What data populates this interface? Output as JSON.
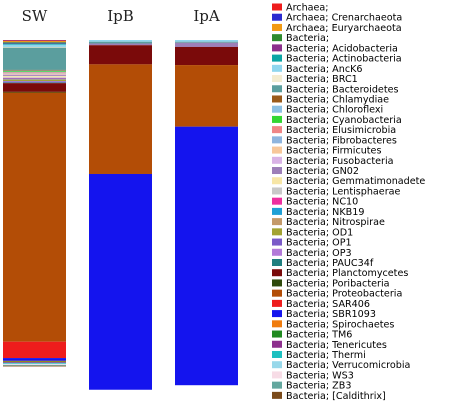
{
  "chart_data": {
    "type": "bar",
    "stacked": true,
    "normalized_to": 100,
    "categories": [
      "SW",
      "IpB",
      "IpA"
    ],
    "series": [
      {
        "name": "Archaea;",
        "color": "#ee1c1c",
        "values": [
          0.2,
          0,
          0
        ]
      },
      {
        "name": "Archaea; Crenarchaeota",
        "color": "#2a2ad0",
        "values": [
          0.1,
          0,
          0
        ]
      },
      {
        "name": "Archaea; Euryarchaeota",
        "color": "#f29a12",
        "values": [
          0.3,
          0,
          0
        ]
      },
      {
        "name": "Bacteria;",
        "color": "#2e8b2e",
        "values": [
          0.2,
          0,
          0
        ]
      },
      {
        "name": "Bacteria; Acidobacteria",
        "color": "#8b2f8b",
        "values": [
          0.2,
          0,
          0
        ]
      },
      {
        "name": "Bacteria; Actinobacteria",
        "color": "#0ba5a5",
        "values": [
          0.3,
          0,
          0
        ]
      },
      {
        "name": "Bacteria; AncK6",
        "color": "#8fd6ee",
        "values": [
          0.7,
          0.5,
          0.5
        ]
      },
      {
        "name": "Bacteria; BRC1",
        "color": "#f4ecd0",
        "values": [
          0.2,
          0,
          0
        ]
      },
      {
        "name": "Bacteria; Bacteroidetes",
        "color": "#5b9e9e",
        "values": [
          6.4,
          0.5,
          0.3
        ]
      },
      {
        "name": "Bacteria; Chlamydiae",
        "color": "#9a5a1a",
        "values": [
          0.2,
          0,
          0
        ]
      },
      {
        "name": "Bacteria; Chloroflexi",
        "color": "#8cc0e4",
        "values": [
          0.2,
          0,
          0
        ]
      },
      {
        "name": "Bacteria; Cyanobacteria",
        "color": "#33d633",
        "values": [
          0.2,
          0,
          0
        ]
      },
      {
        "name": "Bacteria; Elusimicrobia",
        "color": "#f08686",
        "values": [
          0.2,
          0,
          0
        ]
      },
      {
        "name": "Bacteria; Fibrobacteres",
        "color": "#8fb5de",
        "values": [
          0.2,
          0,
          0
        ]
      },
      {
        "name": "Bacteria; Firmicutes",
        "color": "#f7c79a",
        "values": [
          0.3,
          0,
          0
        ]
      },
      {
        "name": "Bacteria; Fusobacteria",
        "color": "#d9b3e6",
        "values": [
          0.2,
          0,
          0
        ]
      },
      {
        "name": "Bacteria; GN02",
        "color": "#9d7fb8",
        "values": [
          0.3,
          0.5,
          1.2
        ]
      },
      {
        "name": "Bacteria; Gemmatimonadete",
        "color": "#f7e6a6",
        "values": [
          0.3,
          0,
          0
        ]
      },
      {
        "name": "Bacteria; Lentisphaerae",
        "color": "#c8c8c8",
        "values": [
          0.2,
          0,
          0
        ]
      },
      {
        "name": "Bacteria; NC10",
        "color": "#ee2f9f",
        "values": [
          0.2,
          0,
          0
        ]
      },
      {
        "name": "Bacteria; NKB19",
        "color": "#1fa0d6",
        "values": [
          0.2,
          0,
          0
        ]
      },
      {
        "name": "Bacteria; Nitrospirae",
        "color": "#c49a6a",
        "values": [
          0.2,
          0,
          0
        ]
      },
      {
        "name": "Bacteria; OD1",
        "color": "#a3a332",
        "values": [
          0.3,
          0,
          0
        ]
      },
      {
        "name": "Bacteria; OP1",
        "color": "#7a5ac8",
        "values": [
          0.2,
          0,
          0
        ]
      },
      {
        "name": "Bacteria; OP3",
        "color": "#b37ad9",
        "values": [
          0.2,
          0,
          0
        ]
      },
      {
        "name": "Bacteria; PAUC34f",
        "color": "#1f7f7f",
        "values": [
          0.2,
          0,
          0
        ]
      },
      {
        "name": "Bacteria; Planctomycetes",
        "color": "#7a0a0a",
        "values": [
          2.5,
          5.5,
          5.2
        ]
      },
      {
        "name": "Bacteria; Poribacteria",
        "color": "#2f4a0c",
        "values": [
          0.2,
          0,
          0
        ]
      },
      {
        "name": "Bacteria; Proteobacteria",
        "color": "#b34d06",
        "values": [
          71.6,
          31.5,
          17.7
        ]
      },
      {
        "name": "Bacteria; SAR406",
        "color": "#ee1c1c",
        "values": [
          4.7,
          0,
          0
        ]
      },
      {
        "name": "Bacteria; SBR1093",
        "color": "#1414ee",
        "values": [
          0.8,
          62.0,
          74.3
        ]
      },
      {
        "name": "Bacteria; Spirochaetes",
        "color": "#f07c0e",
        "values": [
          0.2,
          0,
          0
        ]
      },
      {
        "name": "Bacteria; TM6",
        "color": "#1f8a1f",
        "values": [
          0.2,
          0,
          0
        ]
      },
      {
        "name": "Bacteria; Tenericutes",
        "color": "#8d2f8d",
        "values": [
          0.2,
          0,
          0
        ]
      },
      {
        "name": "Bacteria; Thermi",
        "color": "#1cc0c0",
        "values": [
          0.2,
          0,
          0
        ]
      },
      {
        "name": "Bacteria; Verrucomicrobia",
        "color": "#98d8ea",
        "values": [
          0.2,
          0,
          0
        ]
      },
      {
        "name": "Bacteria; WS3",
        "color": "#f7dce6",
        "values": [
          0.2,
          0,
          0
        ]
      },
      {
        "name": "Bacteria; ZB3",
        "color": "#63a79e",
        "values": [
          0.2,
          0,
          0
        ]
      },
      {
        "name": "Bacteria; [Caldithrix]",
        "color": "#7a4a1a",
        "values": [
          0.2,
          0,
          0
        ]
      }
    ]
  }
}
